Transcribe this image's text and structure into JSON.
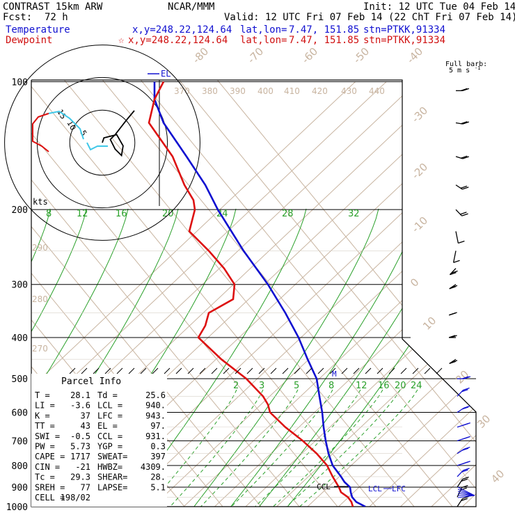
{
  "header": {
    "model": "CONTRAST 15km ARW",
    "org": "NCAR/MMM",
    "init": "Init: 12 UTC Tue 04 Feb 14",
    "fcst_label": "Fcst:",
    "fcst_value": "72 h",
    "valid": "Valid: 12 UTC Fri 07 Feb 14 (22 ChT Fri 07 Feb 14)",
    "temperature": {
      "label": "Temperature",
      "xy": "x,y=248.22,124.64",
      "latlon_label": "lat,lon=",
      "latlon": "7.47, 151.85",
      "stn": "stn=PTKK,91334"
    },
    "dewpoint": {
      "label": "Dewpoint",
      "star": "☆",
      "xy": "x,y=248.22,124.64",
      "latlon_label": "lat,lon=",
      "latlon": "7.47, 151.85",
      "stn": "stn=PTKK,91334"
    }
  },
  "colors": {
    "temperature": "#1010d0",
    "dewpoint": "#dd1010",
    "isotherm": "#c8b4a0",
    "mixing_ratio": "#2aa02a",
    "hodo_low": "#40c8e8",
    "frame": "#000000"
  },
  "chart_data": {
    "type": "skew-t",
    "pressure_levels": [
      100,
      200,
      300,
      400,
      500,
      600,
      700,
      800,
      900,
      1000
    ],
    "pressure_labels": [
      "100",
      "200",
      "300",
      "400",
      "500",
      "600",
      "700",
      "800",
      "900",
      "1000"
    ],
    "isotherm_labels": [
      "-80",
      "-70",
      "-60",
      "-50",
      "-40",
      "-30",
      "-20",
      "-10",
      "0",
      "10",
      "20",
      "30",
      "40"
    ],
    "theta_labels": [
      "370",
      "380",
      "390",
      "400",
      "410",
      "420",
      "430",
      "440",
      "290",
      "280",
      "270"
    ],
    "mixing_ratio_upper": [
      "8",
      "12",
      "16",
      "20",
      "24",
      "28",
      "32"
    ],
    "mixing_ratio_lower": [
      "2",
      "3",
      "5",
      "8",
      "12",
      "16",
      "20",
      "24"
    ],
    "temperature_profile": [
      {
        "p": 1000,
        "t": 27.5
      },
      {
        "p": 975,
        "t": 25.6
      },
      {
        "p": 950,
        "t": 24.6
      },
      {
        "p": 925,
        "t": 24.1
      },
      {
        "p": 900,
        "t": 23.6
      },
      {
        "p": 875,
        "t": 22.1
      },
      {
        "p": 850,
        "t": 20.4
      },
      {
        "p": 800,
        "t": 17.3
      },
      {
        "p": 750,
        "t": 14.2
      },
      {
        "p": 700,
        "t": 10.9
      },
      {
        "p": 650,
        "t": 7.6
      },
      {
        "p": 600,
        "t": 4.0
      },
      {
        "p": 550,
        "t": 0.0
      },
      {
        "p": 500,
        "t": -4.5
      },
      {
        "p": 450,
        "t": -9.5
      },
      {
        "p": 400,
        "t": -16.0
      },
      {
        "p": 350,
        "t": -23.5
      },
      {
        "p": 300,
        "t": -32.0
      },
      {
        "p": 250,
        "t": -42.5
      },
      {
        "p": 200,
        "t": -54.5
      },
      {
        "p": 175,
        "t": -63.5
      },
      {
        "p": 150,
        "t": -71.0
      },
      {
        "p": 125,
        "t": -79.0
      },
      {
        "p": 110,
        "t": -82.0
      },
      {
        "p": 100,
        "t": -80.0
      }
    ],
    "dewpoint_profile": [
      {
        "p": 1000,
        "t": 24.0
      },
      {
        "p": 950,
        "t": 22.0
      },
      {
        "p": 925,
        "t": 20.5
      },
      {
        "p": 900,
        "t": 18.0
      },
      {
        "p": 850,
        "t": 16.0
      },
      {
        "p": 800,
        "t": 13.0
      },
      {
        "p": 750,
        "t": 8.0
      },
      {
        "p": 700,
        "t": 1.0
      },
      {
        "p": 650,
        "t": -7.0
      },
      {
        "p": 600,
        "t": -12.0
      },
      {
        "p": 550,
        "t": -15.0
      },
      {
        "p": 500,
        "t": -23.0
      },
      {
        "p": 450,
        "t": -35.0
      },
      {
        "p": 400,
        "t": -45.0
      },
      {
        "p": 375,
        "t": -44.0
      },
      {
        "p": 350,
        "t": -47.0
      },
      {
        "p": 325,
        "t": -45.0
      },
      {
        "p": 300,
        "t": -42.0
      },
      {
        "p": 275,
        "t": -45.0
      },
      {
        "p": 250,
        "t": -58.0
      },
      {
        "p": 225,
        "t": -66.0
      },
      {
        "p": 200,
        "t": -67.0
      },
      {
        "p": 175,
        "t": -77.0
      },
      {
        "p": 150,
        "t": -83.0
      },
      {
        "p": 125,
        "t": -87.0
      },
      {
        "p": 110,
        "t": -85.0
      },
      {
        "p": 100,
        "t": -83.0
      }
    ],
    "markers": {
      "el": "EL",
      "ccl": "CCL",
      "lcl": "LCL",
      "lfc": "LFC",
      "m": "M",
      "kts": "kts",
      "full_barb": "Full barb:",
      "full_barb_units": "5 m s",
      "full_barb_exp": "-1"
    },
    "hodograph": {
      "ring_labels": [
        "5",
        "10",
        "15"
      ],
      "trace": [
        [
          0,
          0
        ],
        [
          1,
          3
        ],
        [
          5,
          4
        ],
        [
          9,
          5
        ],
        [
          13,
          -2
        ],
        [
          12,
          -8
        ],
        [
          8,
          -4
        ],
        [
          5,
          2
        ],
        [
          8,
          5
        ],
        [
          15,
          14
        ],
        [
          20,
          20
        ]
      ],
      "low_trace": [
        [
          0,
          0
        ],
        [
          -3,
          3
        ],
        [
          -6,
          8
        ],
        [
          -10,
          12
        ],
        [
          -17,
          18
        ],
        [
          -22,
          20
        ]
      ]
    },
    "winds": [
      {
        "p": 105,
        "dir": 90,
        "spd": 6
      },
      {
        "p": 125,
        "dir": 95,
        "spd": 5
      },
      {
        "p": 150,
        "dir": 100,
        "spd": 6
      },
      {
        "p": 175,
        "dir": 110,
        "spd": 4
      },
      {
        "p": 200,
        "dir": 120,
        "spd": 3
      },
      {
        "p": 225,
        "dir": 160,
        "spd": 2
      },
      {
        "p": 250,
        "dir": 200,
        "spd": 2
      },
      {
        "p": 275,
        "dir": 240,
        "spd": 3
      },
      {
        "p": 300,
        "dir": 250,
        "spd": 4
      },
      {
        "p": 350,
        "dir": 260,
        "spd": 4
      },
      {
        "p": 400,
        "dir": 270,
        "spd": 4
      },
      {
        "p": 450,
        "dir": 250,
        "spd": 3
      },
      {
        "p": 500,
        "dir": 90,
        "spd": 3
      },
      {
        "p": 550,
        "dir": 60,
        "spd": 3
      },
      {
        "p": 600,
        "dir": 70,
        "spd": 4
      },
      {
        "p": 650,
        "dir": 80,
        "spd": 5
      },
      {
        "p": 700,
        "dir": 80,
        "spd": 5
      },
      {
        "p": 750,
        "dir": 70,
        "spd": 5
      },
      {
        "p": 800,
        "dir": 80,
        "spd": 4
      },
      {
        "p": 850,
        "dir": 60,
        "spd": 4
      },
      {
        "p": 900,
        "dir": 50,
        "spd": 3
      },
      {
        "p": 950,
        "dir": 40,
        "spd": 4
      },
      {
        "p": 1000,
        "dir": 50,
        "spd": 3
      }
    ]
  },
  "parcel_info": {
    "title": "Parcel Info",
    "rows": [
      [
        "T  =",
        "28.1",
        "Td =",
        "25.6"
      ],
      [
        "LI =",
        "-3.6",
        "LCL =",
        "940."
      ],
      [
        "K  =",
        "37",
        "LFC =",
        "943."
      ],
      [
        "TT =",
        "43",
        "EL  =",
        "97."
      ],
      [
        "SWI =",
        "-0.5",
        "CCL =",
        "931."
      ],
      [
        "PW =",
        "5.73",
        "YGP =",
        "0.3"
      ],
      [
        "CAPE =",
        "1717",
        "SWEAT=",
        "397"
      ],
      [
        "CIN  =",
        "-21",
        "HWBZ=",
        "4309."
      ],
      [
        "Tc =",
        "29.3",
        "SHEAR=",
        "28."
      ],
      [
        "SREH =",
        "77",
        "LAPSE=",
        "5.1"
      ],
      [
        "CELL =",
        "198/02",
        "",
        ""
      ]
    ]
  }
}
